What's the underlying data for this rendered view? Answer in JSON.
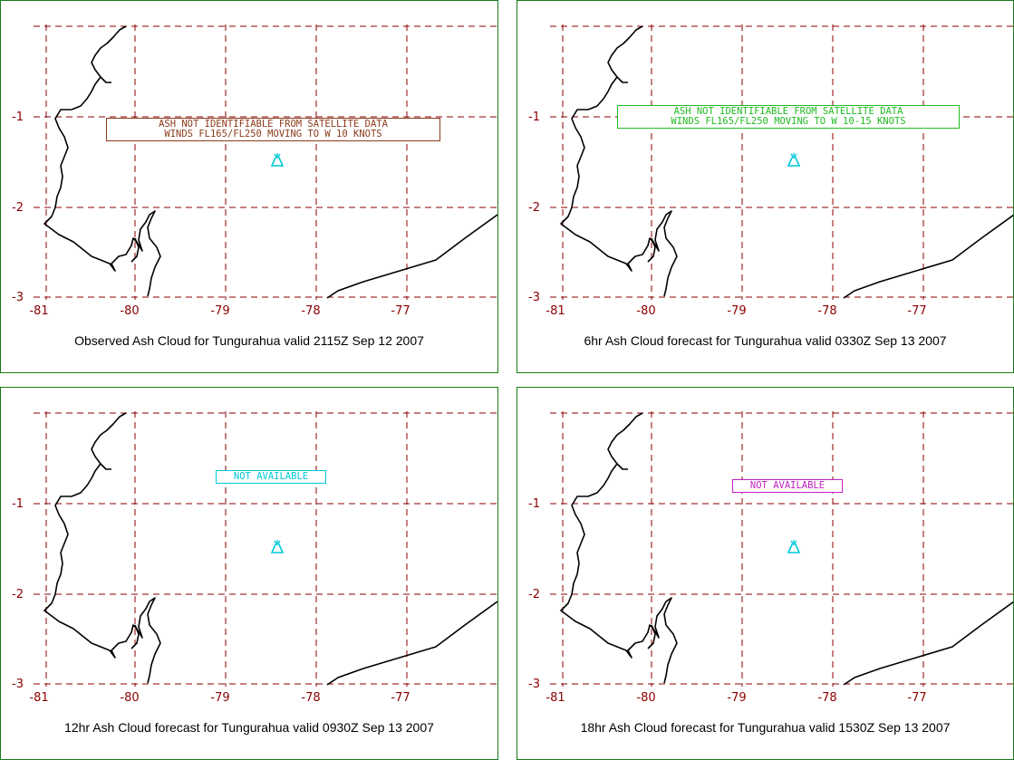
{
  "colors": {
    "grid": "#8b0000",
    "panel_border": "#1a7a1a",
    "coast": "#000000",
    "volcano": "#00c8d8"
  },
  "axis": {
    "x_ticks": [
      "-81",
      "-80",
      "-79",
      "-78",
      "-77"
    ],
    "y_ticks": [
      "-1",
      "-2",
      "-3"
    ]
  },
  "panels": [
    {
      "caption": "Observed Ash Cloud for Tungurahua valid 2115Z Sep 12 2007",
      "message_lines": [
        "ASH NOT IDENTIFIABLE FROM SATELLITE DATA",
        "WINDS FL165/FL250 MOVING TO W 10 KNOTS"
      ],
      "message_color": "#8b3a1a",
      "volcano_icon": "volcano-icon"
    },
    {
      "caption": "6hr Ash Cloud forecast for Tungurahua valid 0330Z Sep 13 2007",
      "message_lines": [
        "ASH NOT IDENTIFIABLE FROM SATELLITE DATA",
        "WINDS FL165/FL250 MOVING TO W 10-15 KNOTS"
      ],
      "message_color": "#22bb22",
      "volcano_icon": "volcano-icon"
    },
    {
      "caption": "12hr Ash Cloud forecast for Tungurahua valid 0930Z Sep 13 2007",
      "message_lines": [
        "NOT AVAILABLE"
      ],
      "message_color": "#00c8d8",
      "volcano_icon": "volcano-icon"
    },
    {
      "caption": "18hr Ash Cloud forecast for Tungurahua valid 1530Z Sep 13 2007",
      "message_lines": [
        "NOT AVAILABLE"
      ],
      "message_color": "#c020c0",
      "volcano_icon": "volcano-icon"
    }
  ]
}
